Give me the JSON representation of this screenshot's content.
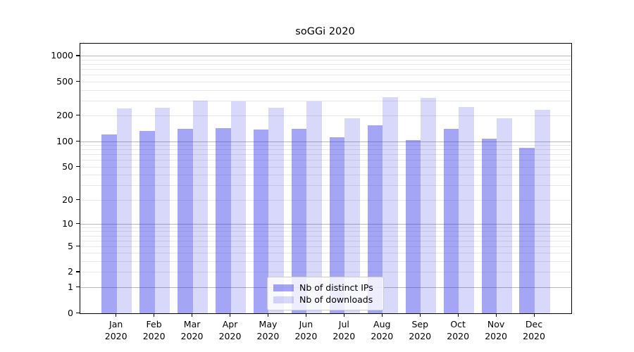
{
  "title": "soGGi 2020",
  "chart_data": {
    "type": "bar",
    "title": "soGGi 2020",
    "xlabel": "",
    "ylabel": "",
    "yscale": "log1p",
    "ylim": [
      0,
      1400
    ],
    "yticks": [
      0,
      1,
      2,
      5,
      10,
      20,
      50,
      100,
      200,
      500,
      1000
    ],
    "grid": "horizontal",
    "legend_position": "lower-center-inside",
    "categories": [
      {
        "month": "Jan",
        "year": "2020"
      },
      {
        "month": "Feb",
        "year": "2020"
      },
      {
        "month": "Mar",
        "year": "2020"
      },
      {
        "month": "Apr",
        "year": "2020"
      },
      {
        "month": "May",
        "year": "2020"
      },
      {
        "month": "Jun",
        "year": "2020"
      },
      {
        "month": "Jul",
        "year": "2020"
      },
      {
        "month": "Aug",
        "year": "2020"
      },
      {
        "month": "Sep",
        "year": "2020"
      },
      {
        "month": "Oct",
        "year": "2020"
      },
      {
        "month": "Nov",
        "year": "2020"
      },
      {
        "month": "Dec",
        "year": "2020"
      }
    ],
    "series": [
      {
        "name": "Nb of distinct IPs",
        "color": "rgba(40,40,230,0.42)",
        "color_on_white_hex": "#a5a5f5",
        "values": [
          122,
          134,
          141,
          144,
          139,
          141,
          113,
          154,
          104,
          140,
          107,
          84
        ]
      },
      {
        "name": "Nb of downloads",
        "color": "rgba(40,40,230,0.18)",
        "color_on_white_hex": "#d8d8fa",
        "values": [
          245,
          250,
          300,
          296,
          251,
          296,
          188,
          332,
          328,
          254,
          186,
          236
        ]
      }
    ]
  },
  "legend": {
    "items": [
      {
        "label": "Nb of distinct IPs"
      },
      {
        "label": "Nb of downloads"
      }
    ]
  },
  "colors": {
    "background": "#ffffff",
    "grid_major": "#b8b8b8",
    "grid_minor": "#e7e7e7",
    "spine": "#000000",
    "text": "#000000",
    "legend_border": "#cccccc"
  }
}
